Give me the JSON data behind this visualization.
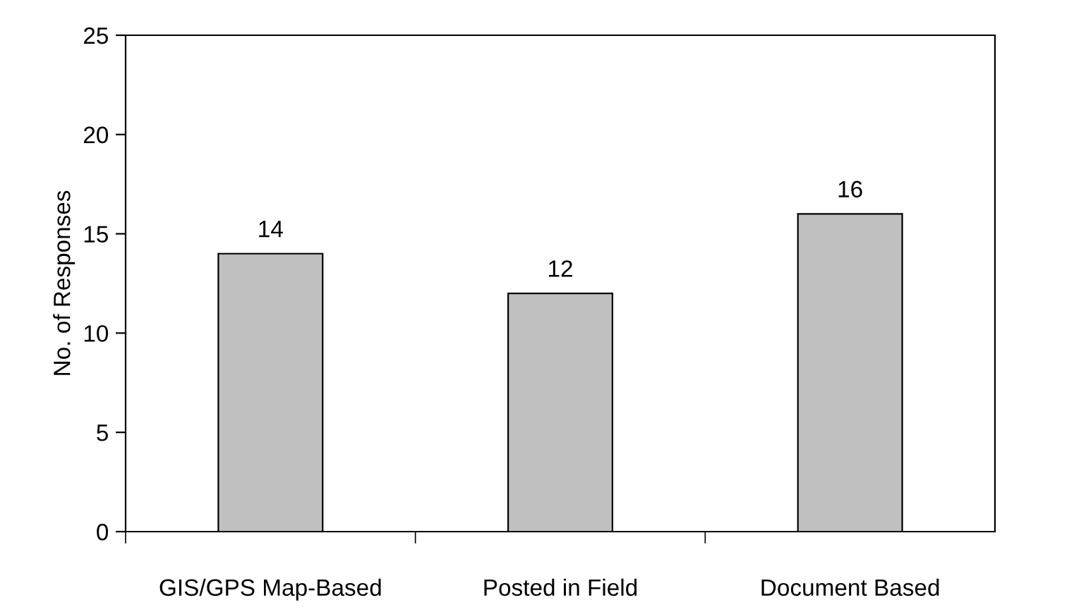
{
  "chart_data": {
    "type": "bar",
    "ylabel": "No. of Responses",
    "categories": [
      "GIS/GPS Map-Based",
      "Posted in Field",
      "Document Based"
    ],
    "values": [
      14,
      12,
      16
    ],
    "color": "#c0c0c0",
    "ylim": [
      0,
      25
    ],
    "yticks": [
      0,
      5,
      10,
      15,
      20,
      25
    ],
    "data_labels": true,
    "grid": false,
    "legend": false
  }
}
